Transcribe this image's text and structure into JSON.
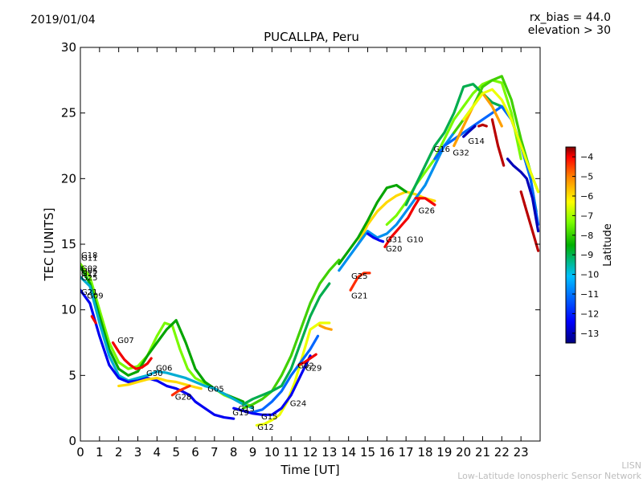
{
  "header": {
    "date": "2019/01/04",
    "bias_line1": "rx_bias = 44.0",
    "bias_line2": "elevation > 30"
  },
  "footer": {
    "line1": "LISN",
    "line2": "Low-Latitude Ionospheric Sensor Network"
  },
  "chart_data": {
    "type": "scatter",
    "title": "PUCALLPA, Peru",
    "xlabel": "Time [UT]",
    "ylabel": "TEC [UNITS]",
    "xlim": [
      0,
      24
    ],
    "ylim": [
      0,
      30
    ],
    "xticks": [
      "0",
      "1",
      "2",
      "3",
      "4",
      "5",
      "6",
      "7",
      "8",
      "9",
      "10",
      "11",
      "12",
      "13",
      "14",
      "15",
      "16",
      "17",
      "18",
      "19",
      "20",
      "21",
      "22",
      "23"
    ],
    "yticks": [
      "0",
      "5",
      "10",
      "15",
      "20",
      "25",
      "30"
    ],
    "grid": false,
    "colorbar": {
      "label": "Latitude",
      "range": [
        -13.5,
        -3.5
      ],
      "ticks": [
        "−4",
        "−5",
        "−6",
        "−7",
        "−8",
        "−9",
        "−10",
        "−11",
        "−12",
        "−13"
      ]
    },
    "colors": {
      "colormap": [
        "#00007f",
        "#0000ff",
        "#007fff",
        "#00c0c0",
        "#00a000",
        "#7fff00",
        "#ffff00",
        "#ff7f00",
        "#ff0000",
        "#7f0000"
      ]
    },
    "satellite_labels": [
      {
        "name": "G18",
        "x": 0.0,
        "y": 14.2
      },
      {
        "name": "G11",
        "x": 0.0,
        "y": 14.0
      },
      {
        "name": "G02",
        "x": 0.0,
        "y": 13.2
      },
      {
        "name": "G05",
        "x": 0.0,
        "y": 13.0
      },
      {
        "name": "G12",
        "x": 0.0,
        "y": 12.8
      },
      {
        "name": "G25",
        "x": 0.0,
        "y": 12.5
      },
      {
        "name": "G21",
        "x": 0.0,
        "y": 11.4
      },
      {
        "name": "G09",
        "x": 0.3,
        "y": 11.1
      },
      {
        "name": "G07",
        "x": 1.9,
        "y": 7.7
      },
      {
        "name": "G30",
        "x": 3.4,
        "y": 5.2
      },
      {
        "name": "G06",
        "x": 3.9,
        "y": 5.6
      },
      {
        "name": "G28",
        "x": 4.9,
        "y": 3.4
      },
      {
        "name": "G05",
        "x": 6.6,
        "y": 4.0
      },
      {
        "name": "G19",
        "x": 7.9,
        "y": 2.2
      },
      {
        "name": "G13",
        "x": 8.2,
        "y": 2.5
      },
      {
        "name": "G15",
        "x": 9.4,
        "y": 1.9
      },
      {
        "name": "G12",
        "x": 9.2,
        "y": 1.1
      },
      {
        "name": "G24",
        "x": 10.9,
        "y": 2.9
      },
      {
        "name": "G02",
        "x": 11.3,
        "y": 5.8
      },
      {
        "name": "G29",
        "x": 11.7,
        "y": 5.6
      },
      {
        "name": "G25",
        "x": 14.1,
        "y": 12.6
      },
      {
        "name": "G21",
        "x": 14.1,
        "y": 11.1
      },
      {
        "name": "G31",
        "x": 15.9,
        "y": 15.4
      },
      {
        "name": "G20",
        "x": 15.9,
        "y": 14.7
      },
      {
        "name": "G10",
        "x": 17.0,
        "y": 15.4
      },
      {
        "name": "G26",
        "x": 17.6,
        "y": 17.6
      },
      {
        "name": "G16",
        "x": 18.4,
        "y": 22.3
      },
      {
        "name": "G32",
        "x": 19.4,
        "y": 22.0
      },
      {
        "name": "G14",
        "x": 20.2,
        "y": 22.9
      }
    ],
    "series": [
      {
        "lat": -8.0,
        "x": [
          0,
          0.5,
          1,
          1.5,
          2,
          2.5,
          3,
          3.5,
          4,
          4.4,
          4.8,
          5.2,
          5.6,
          6,
          6.5,
          7,
          7.5,
          8,
          8.5,
          9
        ],
        "y": [
          13.5,
          12.5,
          10,
          7.5,
          6,
          5.5,
          5.7,
          6.5,
          8.0,
          9.0,
          8.8,
          7,
          5.5,
          4.8,
          4.4,
          4.0,
          3.5,
          3.2,
          2.9,
          2.6
        ]
      },
      {
        "lat": -9.0,
        "x": [
          0,
          0.5,
          1,
          1.5,
          2,
          2.5,
          3,
          3.5,
          4,
          4.5,
          5,
          5.5,
          6,
          6.5,
          7,
          7.5,
          8,
          8.5
        ],
        "y": [
          13.3,
          12.0,
          9.5,
          7.0,
          5.5,
          5.0,
          5.3,
          6.5,
          7.5,
          8.5,
          9.2,
          7.5,
          5.5,
          4.5,
          4.0,
          3.6,
          3.3,
          3.0
        ]
      },
      {
        "lat": -10.5,
        "x": [
          0,
          0.5,
          1,
          1.5,
          2,
          2.5,
          3,
          3.5,
          4,
          4.5,
          5,
          5.5,
          6,
          6.5,
          7,
          7.5,
          8,
          8.5,
          9
        ],
        "y": [
          12.5,
          11.8,
          9.0,
          6.5,
          5.0,
          4.6,
          4.8,
          5.0,
          5.3,
          5.2,
          5.0,
          4.8,
          4.5,
          4.2,
          4.0,
          3.6,
          3.2,
          2.8,
          2.5
        ]
      },
      {
        "lat": -12.5,
        "x": [
          0,
          0.5,
          1,
          1.5,
          2,
          2.5,
          3,
          3.5,
          4,
          4.5,
          5,
          5.3,
          5.7,
          6,
          6.5,
          7,
          7.5,
          8
        ],
        "y": [
          11.5,
          10.5,
          8.0,
          5.8,
          4.8,
          4.5,
          4.6,
          4.8,
          4.6,
          4.2,
          4.0,
          3.8,
          3.5,
          3.0,
          2.5,
          2.0,
          1.8,
          1.7
        ]
      },
      {
        "lat": -6.5,
        "x": [
          2.0,
          2.5,
          3,
          3.5,
          4,
          4.5,
          5,
          5.5,
          6,
          6.3
        ],
        "y": [
          4.2,
          4.3,
          4.5,
          4.7,
          4.8,
          4.6,
          4.5,
          4.3,
          4.1,
          4.0
        ]
      },
      {
        "lat": -4.5,
        "x": [
          1.7,
          2.0,
          2.3,
          2.6,
          2.9,
          3.2,
          3.5,
          3.7
        ],
        "y": [
          7.5,
          6.8,
          6.2,
          5.8,
          5.5,
          5.6,
          5.9,
          6.3
        ]
      },
      {
        "lat": -5.0,
        "x": [
          4.8,
          5.1,
          5.4,
          5.7
        ],
        "y": [
          3.5,
          3.8,
          4.0,
          4.2
        ]
      },
      {
        "lat": -8.5,
        "x": [
          8.5,
          9,
          9.5,
          10,
          10.5,
          11,
          11.5,
          12,
          12.5,
          13,
          13.5
        ],
        "y": [
          2.5,
          2.8,
          3.2,
          3.8,
          5.0,
          6.5,
          8.5,
          10.5,
          12.0,
          13.0,
          13.8
        ]
      },
      {
        "lat": -9.5,
        "x": [
          8.5,
          9,
          9.5,
          10,
          10.5,
          11,
          11.5,
          12,
          12.5,
          13
        ],
        "y": [
          2.8,
          3.2,
          3.5,
          3.8,
          4.2,
          5.5,
          7.5,
          9.5,
          11.0,
          12.0
        ]
      },
      {
        "lat": -7.0,
        "x": [
          9.2,
          9.6,
          10,
          10.4,
          10.8,
          11.2,
          11.6,
          12,
          12.5,
          13
        ],
        "y": [
          1.2,
          1.3,
          1.6,
          2.0,
          3.0,
          4.5,
          6.5,
          8.5,
          9.0,
          9.0
        ]
      },
      {
        "lat": -11.5,
        "x": [
          9,
          9.5,
          10,
          10.5,
          11,
          11.5,
          12,
          12.4
        ],
        "y": [
          2.2,
          2.4,
          3.0,
          3.8,
          5.0,
          6.0,
          7.0,
          8.0
        ]
      },
      {
        "lat": -12.5,
        "x": [
          8,
          8.5,
          9,
          9.5,
          10,
          10.5,
          11,
          11.5,
          12
        ],
        "y": [
          2.5,
          2.3,
          2.1,
          2.0,
          2.0,
          2.5,
          3.5,
          5.0,
          6.5
        ]
      },
      {
        "lat": -4.5,
        "x": [
          11.4,
          11.7,
          12,
          12.3
        ],
        "y": [
          5.8,
          6.0,
          6.3,
          6.6
        ]
      },
      {
        "lat": -6.0,
        "x": [
          12.5,
          12.8,
          13.1
        ],
        "y": [
          8.8,
          8.6,
          8.5
        ]
      },
      {
        "lat": -6.5,
        "x": [
          14.5,
          15,
          15.5,
          16,
          16.5,
          17,
          17.5,
          18,
          18.5
        ],
        "y": [
          15.0,
          16.5,
          17.5,
          18.2,
          18.7,
          19.0,
          18.8,
          18.5,
          18.3
        ]
      },
      {
        "lat": -9.0,
        "x": [
          13.5,
          14,
          14.5,
          15,
          15.5,
          16,
          16.5,
          17
        ],
        "y": [
          13.5,
          14.5,
          15.5,
          16.8,
          18.2,
          19.3,
          19.5,
          19.0
        ]
      },
      {
        "lat": -11.0,
        "x": [
          13.5,
          14,
          14.5,
          15,
          15.5,
          16,
          16.5,
          17,
          17.5,
          18,
          18.5,
          19,
          19.5
        ],
        "y": [
          13.0,
          14.0,
          15.0,
          16.0,
          15.5,
          15.8,
          16.5,
          17.5,
          18.5,
          19.5,
          21.0,
          22.5,
          23.5
        ]
      },
      {
        "lat": -5.0,
        "x": [
          14.1,
          14.3,
          14.5,
          14.8,
          15.1
        ],
        "y": [
          11.5,
          12.0,
          12.5,
          12.8,
          12.8
        ]
      },
      {
        "lat": -12.5,
        "x": [
          15,
          15.3,
          15.6,
          15.8
        ],
        "y": [
          15.8,
          15.5,
          15.3,
          15.2
        ]
      },
      {
        "lat": -4.5,
        "x": [
          15.9,
          16.2,
          16.5,
          16.8,
          17.1,
          17.4,
          17.7
        ],
        "y": [
          14.8,
          15.5,
          16.0,
          16.5,
          17.0,
          17.8,
          18.5
        ]
      },
      {
        "lat": -8.0,
        "x": [
          16,
          16.5,
          17,
          17.5,
          18,
          18.5,
          19,
          19.5,
          20,
          20.5,
          21,
          21.5,
          22,
          22.5,
          23
        ],
        "y": [
          16.5,
          17.2,
          18.2,
          19.5,
          20.5,
          21.5,
          23.0,
          24.5,
          25.5,
          26.5,
          27.2,
          27.5,
          27.3,
          25.0,
          21.5
        ]
      },
      {
        "lat": -9.5,
        "x": [
          17,
          17.5,
          18,
          18.5,
          19,
          19.5,
          20,
          20.5,
          21,
          21.5,
          22,
          22.5,
          23,
          23.5,
          23.8
        ],
        "y": [
          18.0,
          19.5,
          21.0,
          22.5,
          23.5,
          25.0,
          27.0,
          27.2,
          26.5,
          25.8,
          25.5,
          24.5,
          22.5,
          20.0,
          17.5
        ]
      },
      {
        "lat": -8.5,
        "x": [
          19.5,
          20,
          20.5,
          21,
          21.5,
          22,
          22.5,
          23,
          23.5,
          23.9
        ],
        "y": [
          23.5,
          24.5,
          25.5,
          27.0,
          27.5,
          27.8,
          26.0,
          23.0,
          20.5,
          19.0
        ]
      },
      {
        "lat": -11.5,
        "x": [
          18.5,
          19,
          19.5,
          20,
          20.5,
          21,
          21.5,
          22,
          22.5,
          23,
          23.5,
          23.9
        ],
        "y": [
          21.5,
          22.5,
          23.0,
          23.5,
          24.0,
          24.5,
          25.0,
          25.5,
          24.5,
          22.5,
          20.0,
          16.5
        ]
      },
      {
        "lat": -6.0,
        "x": [
          19.5,
          20,
          20.5,
          21,
          21.5,
          22
        ],
        "y": [
          22.5,
          24.0,
          25.5,
          26.5,
          25.5,
          24.0
        ]
      },
      {
        "lat": -4.5,
        "x": [
          17.5,
          18,
          18.5
        ],
        "y": [
          18.5,
          18.5,
          18.0
        ]
      },
      {
        "lat": -7.0,
        "x": [
          20,
          20.5,
          21,
          21.5,
          22,
          22.5,
          23,
          23.5,
          23.9
        ],
        "y": [
          24.5,
          25.5,
          26.5,
          26.8,
          26.0,
          24.5,
          22.5,
          20.5,
          19.0
        ]
      },
      {
        "lat": -4.0,
        "x": [
          21.5,
          21.8,
          22.1
        ],
        "y": [
          24.5,
          22.5,
          21.0
        ]
      },
      {
        "lat": -13.0,
        "x": [
          20,
          20.3,
          20.6
        ],
        "y": [
          23.2,
          23.6,
          24.0
        ]
      },
      {
        "lat": -4.0,
        "x": [
          20.8,
          21.0,
          21.2
        ],
        "y": [
          24.0,
          24.1,
          24.0
        ]
      },
      {
        "lat": -13.0,
        "x": [
          22.3,
          22.6,
          23.0,
          23.3,
          23.6,
          23.9
        ],
        "y": [
          21.5,
          21.0,
          20.5,
          20.0,
          18.5,
          16.0
        ]
      },
      {
        "lat": -4.0,
        "x": [
          23.0,
          23.3,
          23.6,
          23.9
        ],
        "y": [
          19.0,
          17.5,
          16.0,
          14.5
        ]
      },
      {
        "lat": -4.5,
        "x": [
          0.6,
          0.8
        ],
        "y": [
          9.5,
          9.0
        ]
      }
    ]
  }
}
